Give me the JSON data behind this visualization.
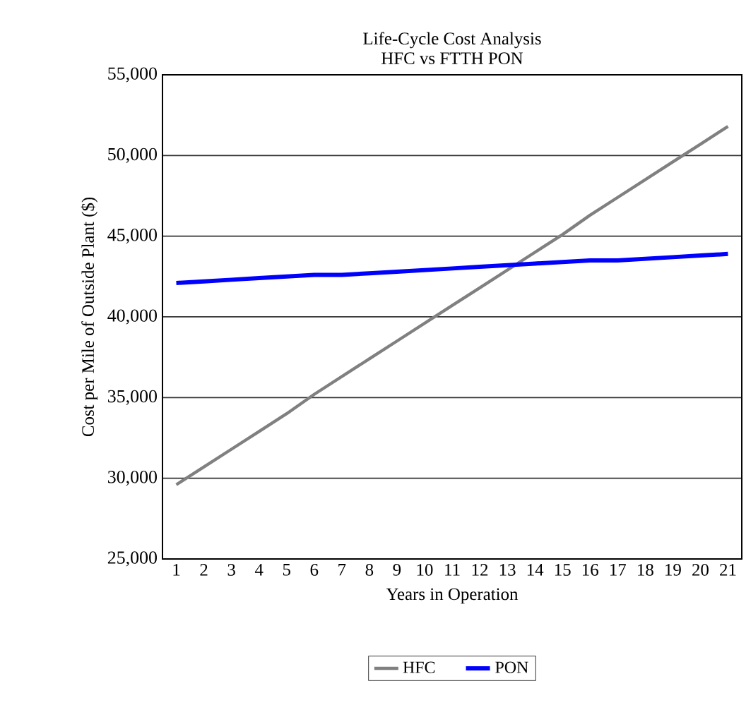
{
  "chart_data": {
    "type": "line",
    "title": "Life-Cycle Cost Analysis\nHFC vs FTTH PON",
    "xlabel": "Years in Operation",
    "ylabel": "Cost per Mile of Outside Plant ($)",
    "categories": [
      "1",
      "2",
      "3",
      "4",
      "5",
      "6",
      "7",
      "8",
      "9",
      "10",
      "11",
      "12",
      "13",
      "14",
      "15",
      "16",
      "17",
      "18",
      "19",
      "20",
      "21"
    ],
    "series": [
      {
        "name": "HFC",
        "color": "#808080",
        "values": [
          29600,
          30700,
          31800,
          32900,
          34000,
          35200,
          36300,
          37400,
          38500,
          39600,
          40700,
          41800,
          42900,
          44000,
          45100,
          46300,
          47400,
          48500,
          49600,
          50700,
          51800
        ]
      },
      {
        "name": "PON",
        "color": "#0000ff",
        "values": [
          42100,
          42200,
          42300,
          42400,
          42500,
          42600,
          42600,
          42700,
          42800,
          42900,
          43000,
          43100,
          43200,
          43300,
          43400,
          43500,
          43500,
          43600,
          43700,
          43800,
          43900
        ]
      }
    ],
    "ylim": [
      25000,
      55000
    ],
    "yticks": [
      {
        "value": 25000,
        "label": "25,000"
      },
      {
        "value": 30000,
        "label": "30,000"
      },
      {
        "value": 35000,
        "label": "35,000"
      },
      {
        "value": 40000,
        "label": "40,000"
      },
      {
        "value": 45000,
        "label": "45,000"
      },
      {
        "value": 50000,
        "label": "50,000"
      },
      {
        "value": 55000,
        "label": "55,000"
      }
    ],
    "grid": "y",
    "legend": "bottom",
    "marker": "none",
    "line_style": "solid"
  }
}
